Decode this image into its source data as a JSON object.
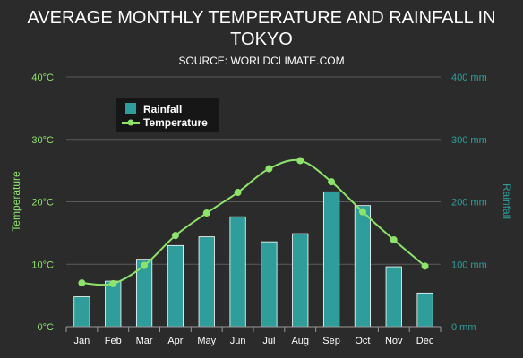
{
  "chart_data": {
    "type": "bar",
    "title": "AVERAGE MONTHLY TEMPERATURE AND RAINFALL IN TOKYO",
    "title_lines": [
      "AVERAGE MONTHLY TEMPERATURE AND RAINFALL IN",
      "TOKYO"
    ],
    "subtitle": "SOURCE: WORLDCLIMATE.COM",
    "categories": [
      "Jan",
      "Feb",
      "Mar",
      "Apr",
      "May",
      "Jun",
      "Jul",
      "Aug",
      "Sep",
      "Oct",
      "Nov",
      "Dec"
    ],
    "y_left": {
      "label": "Temperature",
      "range": [
        0,
        40
      ],
      "ticks": [
        0,
        10,
        20,
        30,
        40
      ],
      "tick_labels": [
        "0°C",
        "10°C",
        "20°C",
        "30°C",
        "40°C"
      ],
      "color": "#8ee36a"
    },
    "y_right": {
      "label": "Rainfall",
      "range": [
        0,
        400
      ],
      "ticks": [
        0,
        100,
        200,
        300,
        400
      ],
      "tick_labels": [
        "0 mm",
        "100 mm",
        "200 mm",
        "300 mm",
        "400 mm"
      ],
      "color": "#2f9e9a"
    },
    "series": [
      {
        "name": "Rainfall",
        "type": "bar",
        "axis": "right",
        "color": "#2f9e9a",
        "values": [
          48,
          73,
          108,
          130,
          144,
          176,
          136,
          149,
          216,
          194,
          96,
          54
        ]
      },
      {
        "name": "Temperature",
        "type": "line",
        "axis": "left",
        "color": "#8ee36a",
        "values": [
          7.0,
          6.9,
          9.8,
          14.6,
          18.2,
          21.5,
          25.3,
          26.6,
          23.2,
          18.4,
          13.9,
          9.7
        ]
      }
    ],
    "grid": true,
    "legend_position": "top-left"
  },
  "colors": {
    "background": "#2b2b2b",
    "text": "#ffffff",
    "grid": "#5a5a5a",
    "axis": "#9a9a9a",
    "legend_bg": "#161616"
  }
}
